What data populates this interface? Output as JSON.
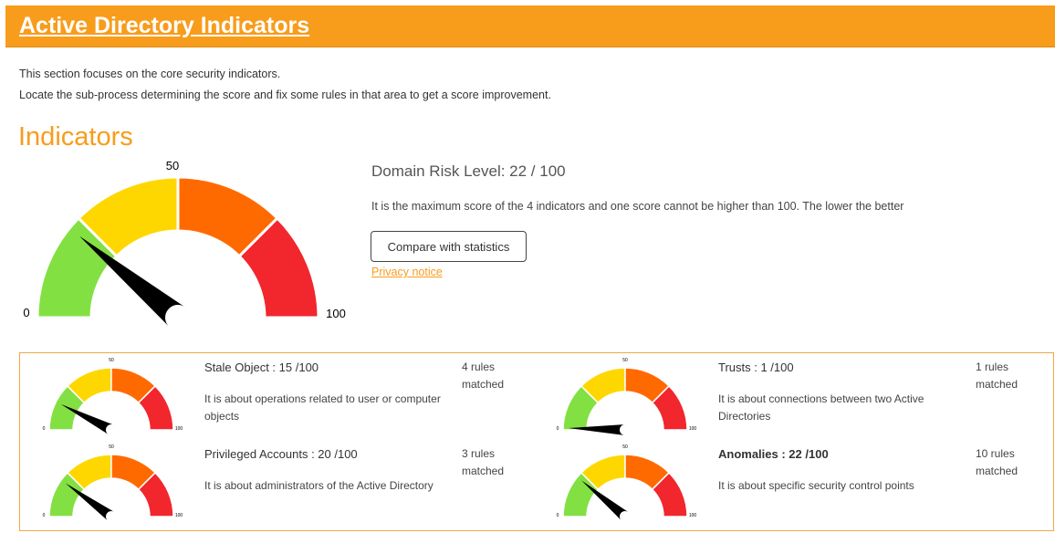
{
  "header": {
    "title": "Active Directory Indicators"
  },
  "intro": {
    "line1": "This section focuses on the core security indicators.",
    "line2": "Locate the sub-process determining the score and fix some rules in that area to get a score improvement."
  },
  "indicators_heading": "Indicators",
  "gauge": {
    "min_label": "0",
    "mid_label": "50",
    "max_label": "100",
    "segment_colors": [
      "#83e043",
      "#ffd700",
      "#ff6a00",
      "#f2262d"
    ],
    "needle_color": "#000000"
  },
  "domain_risk": {
    "title": "Domain Risk Level: 22 / 100",
    "score": 22,
    "description": "It is the maximum score of the 4 indicators and one score cannot be higher than 100. The lower the better",
    "compare_button_label": "Compare with statistics",
    "privacy_link_label": "Privacy notice"
  },
  "indicators": [
    {
      "title": "Stale Object : 15 /100",
      "score": 15,
      "description": "It is about operations related to user or computer objects",
      "rules": "4 rules matched"
    },
    {
      "title": "Trusts : 1 /100",
      "score": 1,
      "description": "It is about connections between two Active Directories",
      "rules": "1 rules matched"
    },
    {
      "title": "Privileged Accounts : 20 /100",
      "score": 20,
      "description": "It is about administrators of the Active Directory",
      "rules": "3 rules matched"
    },
    {
      "title": "Anomalies : 22 /100",
      "score": 22,
      "description": "It is about specific security control points",
      "rules": "10 rules matched"
    }
  ]
}
